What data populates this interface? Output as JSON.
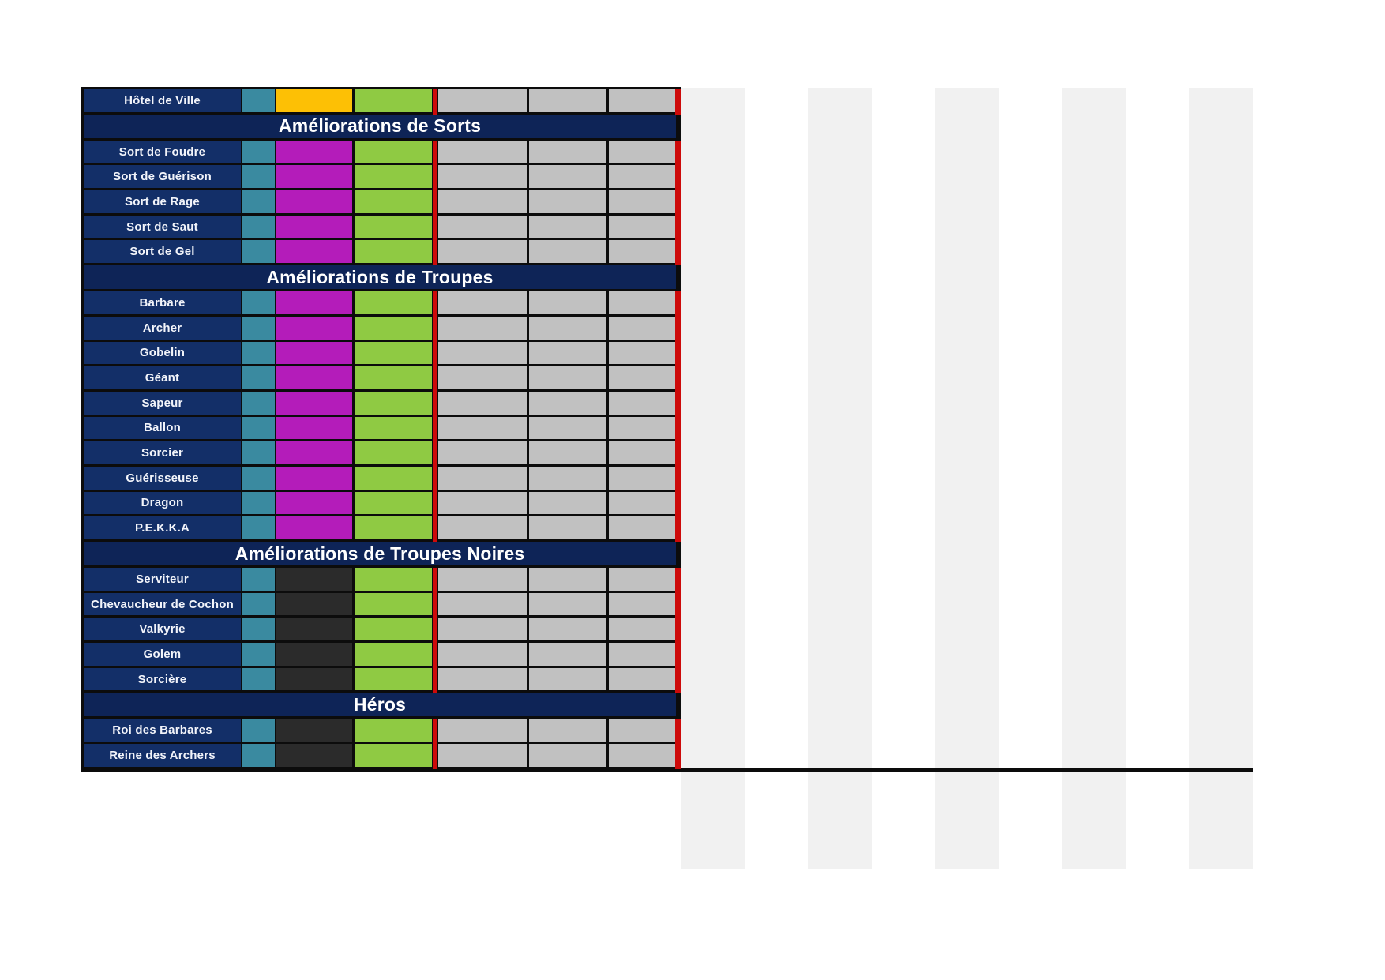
{
  "colors": {
    "grid": "#0c0c0c",
    "navy_row": "#132f68",
    "navy_header": "#0e2457",
    "teal": "#3a8aa0",
    "magenta": "#b41cba",
    "orange": "#fdc005",
    "green": "#8fca43",
    "gray": "#c1c1c1",
    "dark": "#2b2b2b",
    "red": "#cd0a0a",
    "stripe": "#f1f1f1",
    "label_text": "#f2f4fa",
    "header_text": "#ffffff"
  },
  "table": {
    "rows": [
      {
        "type": "item",
        "label": "Hôtel de Ville",
        "cells": [
          "teal",
          "orange",
          "green",
          "gray",
          "gray",
          "gray"
        ]
      },
      {
        "type": "section",
        "label": "Améliorations de Sorts"
      },
      {
        "type": "item",
        "label": "Sort de Foudre",
        "cells": [
          "teal",
          "magenta",
          "green",
          "gray",
          "gray",
          "gray"
        ]
      },
      {
        "type": "item",
        "label": "Sort de Guérison",
        "cells": [
          "teal",
          "magenta",
          "green",
          "gray",
          "gray",
          "gray"
        ]
      },
      {
        "type": "item",
        "label": "Sort de Rage",
        "cells": [
          "teal",
          "magenta",
          "green",
          "gray",
          "gray",
          "gray"
        ]
      },
      {
        "type": "item",
        "label": "Sort de Saut",
        "cells": [
          "teal",
          "magenta",
          "green",
          "gray",
          "gray",
          "gray"
        ]
      },
      {
        "type": "item",
        "label": "Sort de Gel",
        "cells": [
          "teal",
          "magenta",
          "green",
          "gray",
          "gray",
          "gray"
        ]
      },
      {
        "type": "section",
        "label": "Améliorations de Troupes"
      },
      {
        "type": "item",
        "label": "Barbare",
        "cells": [
          "teal",
          "magenta",
          "green",
          "gray",
          "gray",
          "gray"
        ]
      },
      {
        "type": "item",
        "label": "Archer",
        "cells": [
          "teal",
          "magenta",
          "green",
          "gray",
          "gray",
          "gray"
        ]
      },
      {
        "type": "item",
        "label": "Gobelin",
        "cells": [
          "teal",
          "magenta",
          "green",
          "gray",
          "gray",
          "gray"
        ]
      },
      {
        "type": "item",
        "label": "Géant",
        "cells": [
          "teal",
          "magenta",
          "green",
          "gray",
          "gray",
          "gray"
        ]
      },
      {
        "type": "item",
        "label": "Sapeur",
        "cells": [
          "teal",
          "magenta",
          "green",
          "gray",
          "gray",
          "gray"
        ]
      },
      {
        "type": "item",
        "label": "Ballon",
        "cells": [
          "teal",
          "magenta",
          "green",
          "gray",
          "gray",
          "gray"
        ]
      },
      {
        "type": "item",
        "label": "Sorcier",
        "cells": [
          "teal",
          "magenta",
          "green",
          "gray",
          "gray",
          "gray"
        ]
      },
      {
        "type": "item",
        "label": "Guérisseuse",
        "cells": [
          "teal",
          "magenta",
          "green",
          "gray",
          "gray",
          "gray"
        ]
      },
      {
        "type": "item",
        "label": "Dragon",
        "cells": [
          "teal",
          "magenta",
          "green",
          "gray",
          "gray",
          "gray"
        ]
      },
      {
        "type": "item",
        "label": "P.E.K.K.A",
        "cells": [
          "teal",
          "magenta",
          "green",
          "gray",
          "gray",
          "gray"
        ]
      },
      {
        "type": "section",
        "label": "Améliorations de Troupes Noires"
      },
      {
        "type": "item",
        "label": "Serviteur",
        "cells": [
          "teal",
          "dark",
          "green",
          "gray",
          "gray",
          "gray"
        ]
      },
      {
        "type": "item",
        "label": "Chevaucheur de Cochon",
        "cells": [
          "teal",
          "dark",
          "green",
          "gray",
          "gray",
          "gray"
        ]
      },
      {
        "type": "item",
        "label": "Valkyrie",
        "cells": [
          "teal",
          "dark",
          "green",
          "gray",
          "gray",
          "gray"
        ]
      },
      {
        "type": "item",
        "label": "Golem",
        "cells": [
          "teal",
          "dark",
          "green",
          "gray",
          "gray",
          "gray"
        ]
      },
      {
        "type": "item",
        "label": "Sorcière",
        "cells": [
          "teal",
          "dark",
          "green",
          "gray",
          "gray",
          "gray"
        ]
      },
      {
        "type": "section",
        "label": "Héros"
      },
      {
        "type": "item",
        "label": "Roi des Barbares",
        "cells": [
          "teal",
          "dark",
          "green",
          "gray",
          "gray",
          "gray"
        ]
      },
      {
        "type": "item",
        "label": "Reine des Archers",
        "cells": [
          "teal",
          "dark",
          "green",
          "gray",
          "gray",
          "gray"
        ]
      }
    ]
  }
}
